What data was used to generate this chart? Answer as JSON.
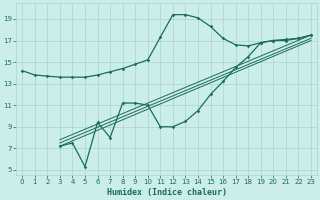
{
  "xlabel": "Humidex (Indice chaleur)",
  "bg_color": "#cceee8",
  "line_color": "#1a6b60",
  "grid_color": "#aad4cc",
  "xlim": [
    -0.5,
    23.5
  ],
  "ylim": [
    4.5,
    20.5
  ],
  "xticks": [
    0,
    1,
    2,
    3,
    4,
    5,
    6,
    7,
    8,
    9,
    10,
    11,
    12,
    13,
    14,
    15,
    16,
    17,
    18,
    19,
    20,
    21,
    22,
    23
  ],
  "yticks": [
    5,
    7,
    9,
    11,
    13,
    15,
    17,
    19
  ],
  "curve1_x": [
    0,
    1,
    2,
    3,
    4,
    5,
    6,
    7,
    8,
    9,
    10,
    11,
    12,
    13,
    14,
    15,
    16,
    17,
    18,
    19,
    20,
    21,
    22,
    23
  ],
  "curve1_y": [
    14.2,
    13.8,
    13.7,
    13.6,
    13.6,
    13.6,
    13.8,
    14.1,
    14.4,
    14.8,
    15.2,
    17.3,
    19.4,
    19.4,
    19.1,
    18.3,
    17.2,
    16.6,
    16.5,
    16.8,
    17.0,
    17.1,
    17.2,
    17.5
  ],
  "curve2_x": [
    3,
    4,
    5,
    6,
    7,
    8,
    9,
    10,
    11,
    12,
    13,
    14,
    15,
    16,
    17,
    18,
    19,
    20,
    21,
    22,
    23
  ],
  "curve2_y": [
    7.2,
    7.5,
    5.3,
    9.4,
    8.0,
    11.2,
    11.2,
    11.0,
    9.0,
    9.0,
    9.5,
    10.5,
    12.0,
    13.2,
    14.5,
    15.5,
    16.8,
    17.0,
    17.0,
    17.2,
    17.5
  ],
  "line1_x": [
    3,
    23
  ],
  "line1_y": [
    7.5,
    17.2
  ],
  "line2_x": [
    3,
    23
  ],
  "line2_y": [
    7.2,
    17.0
  ],
  "line3_x": [
    3,
    23
  ],
  "line3_y": [
    7.8,
    17.5
  ]
}
